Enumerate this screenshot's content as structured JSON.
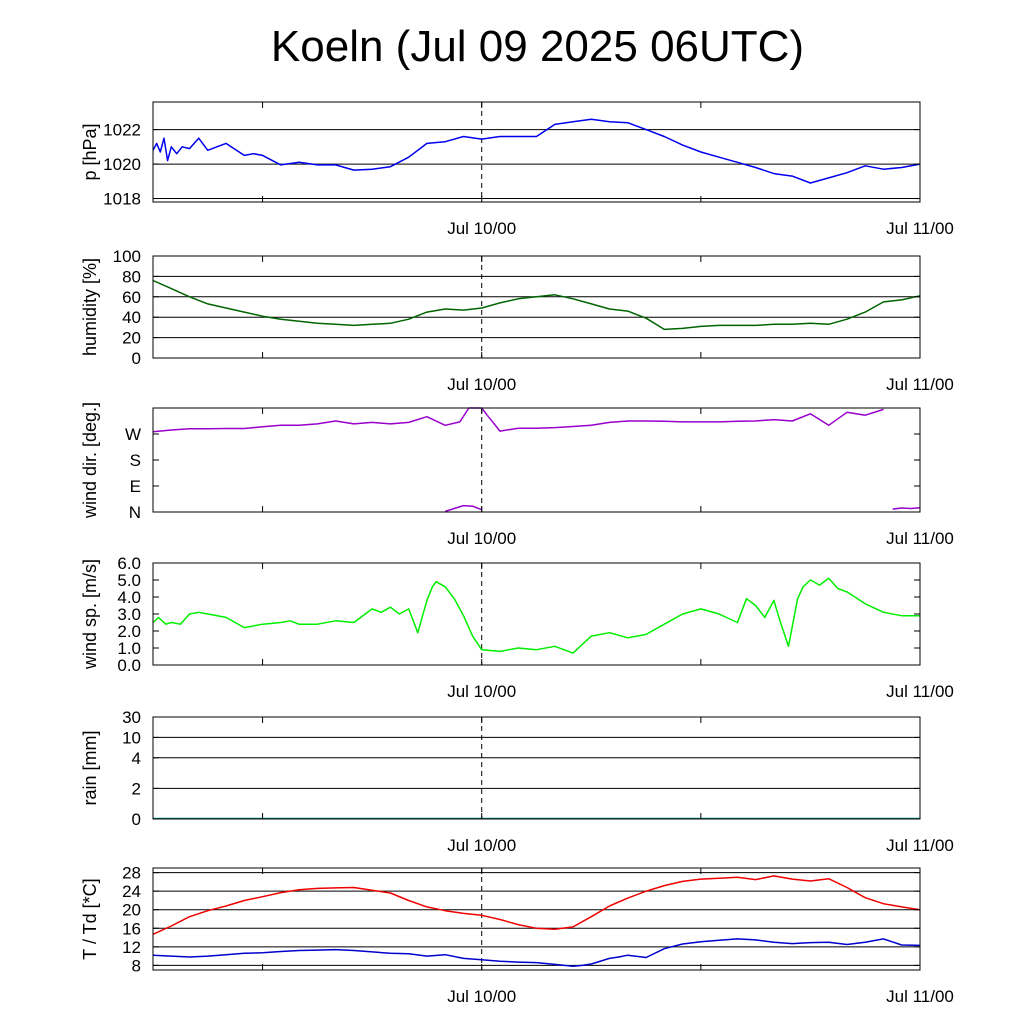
{
  "title": "Koeln (Jul 09 2025 06UTC)",
  "x_tick_labels": [
    "Jul 10/00",
    "Jul 11/00"
  ],
  "chart_data": [
    {
      "type": "line",
      "id": "pressure",
      "ylabel": "p [hPa]",
      "ylim": [
        1017.8,
        1023.6
      ],
      "yticks": [
        1018,
        1020,
        1022
      ],
      "ytick_labels": [
        "1018",
        "1020",
        "1022"
      ],
      "grid_y": [
        1018,
        1020,
        1022
      ],
      "x_range_hours": [
        6,
        48
      ],
      "series": [
        {
          "color": "#0000ee",
          "x": [
            6,
            6.2,
            6.4,
            6.6,
            6.8,
            7.0,
            7.3,
            7.6,
            8.0,
            8.5,
            9.0,
            9.5,
            10,
            11,
            11.5,
            12,
            13,
            14,
            15,
            16,
            17,
            18,
            19,
            20,
            21,
            22,
            23,
            24,
            25,
            26,
            27,
            28,
            29,
            30,
            31,
            32,
            33,
            34,
            35,
            36,
            37,
            38,
            39,
            40,
            41,
            42,
            43,
            44,
            45,
            46,
            47,
            48
          ],
          "y": [
            1020.8,
            1021.2,
            1020.7,
            1021.5,
            1020.2,
            1021.0,
            1020.6,
            1021.0,
            1020.9,
            1021.5,
            1020.8,
            1021.0,
            1021.2,
            1020.5,
            1020.6,
            1020.5,
            1019.95,
            1020.1,
            1019.95,
            1019.95,
            1019.65,
            1019.7,
            1019.85,
            1020.4,
            1021.2,
            1021.3,
            1021.6,
            1021.45,
            1021.6,
            1021.6,
            1021.6,
            1022.3,
            1022.45,
            1022.6,
            1022.45,
            1022.4,
            1022.0,
            1021.6,
            1021.1,
            1020.7,
            1020.4,
            1020.1,
            1019.8,
            1019.45,
            1019.3,
            1018.9,
            1019.2,
            1019.5,
            1019.9,
            1019.7,
            1019.8,
            1020.0
          ]
        }
      ]
    },
    {
      "type": "line",
      "id": "humidity",
      "ylabel": "humidity [%]",
      "ylim": [
        0,
        100
      ],
      "yticks": [
        0,
        20,
        40,
        60,
        80,
        100
      ],
      "ytick_labels": [
        "0",
        "20",
        "40",
        "60",
        "80",
        "100"
      ],
      "grid_y": [
        20,
        40,
        60,
        80
      ],
      "x_range_hours": [
        6,
        48
      ],
      "series": [
        {
          "color": "#006400",
          "x": [
            6,
            7,
            8,
            9,
            10,
            11,
            12,
            13,
            14,
            15,
            16,
            17,
            18,
            19,
            20,
            21,
            22,
            23,
            24,
            25,
            26,
            27,
            28,
            29,
            30,
            31,
            32,
            33,
            34,
            35,
            36,
            37,
            38,
            39,
            40,
            41,
            42,
            43,
            44,
            45,
            46,
            47,
            48
          ],
          "y": [
            76,
            68,
            60,
            53,
            49,
            45,
            41,
            38,
            36,
            34,
            33,
            32,
            33,
            34,
            38,
            45,
            48,
            47,
            49,
            54,
            58,
            60,
            62,
            58,
            53,
            48,
            46,
            39,
            28,
            29,
            31,
            32,
            32,
            32,
            33,
            33,
            34,
            33,
            38,
            45,
            55,
            57,
            61
          ]
        }
      ]
    },
    {
      "type": "line",
      "id": "wind_direction",
      "ylabel": "wind dir. [deg.]",
      "ylim": [
        0,
        360
      ],
      "yticks": [
        0,
        90,
        180,
        270
      ],
      "ytick_labels": [
        "N",
        "E",
        "S",
        "W"
      ],
      "grid_y": [],
      "x_range_hours": [
        6,
        48
      ],
      "series": [
        {
          "color": "#9900cc",
          "x": [
            6,
            7,
            8,
            9,
            10,
            11,
            12,
            13,
            14,
            15,
            16,
            17,
            18,
            19,
            20,
            21,
            22,
            22.8,
            23.3,
            24.0,
            24.3,
            25,
            26,
            27,
            28,
            29,
            30,
            31,
            32,
            33,
            34,
            35,
            36,
            37,
            38,
            39,
            40,
            41,
            42,
            43,
            44,
            45,
            46
          ],
          "y": [
            278,
            284,
            288,
            288,
            289,
            289,
            295,
            300,
            300,
            305,
            315,
            305,
            310,
            305,
            310,
            330,
            300,
            312,
            360,
            360,
            335,
            280,
            290,
            290,
            292,
            296,
            300,
            310,
            315,
            315,
            314,
            312,
            312,
            312,
            314,
            315,
            320,
            315,
            340,
            300,
            345,
            335,
            355
          ]
        },
        {
          "color": "#9900cc",
          "x": [
            22.0,
            22.5,
            23,
            23.5,
            24
          ],
          "y": [
            2,
            12,
            22,
            20,
            8
          ]
        },
        {
          "color": "#9900cc",
          "x": [
            46.5,
            47,
            47.5,
            48
          ],
          "y": [
            10,
            14,
            12,
            15
          ]
        }
      ]
    },
    {
      "type": "line",
      "id": "wind_speed",
      "ylabel": "wind sp. [m/s]",
      "ylim": [
        0,
        6
      ],
      "yticks": [
        0,
        1,
        2,
        3,
        4,
        5,
        6
      ],
      "ytick_labels": [
        "0.0",
        "1.0",
        "2.0",
        "3.0",
        "4.0",
        "5.0",
        "6.0"
      ],
      "grid_y": [],
      "x_range_hours": [
        6,
        48
      ],
      "series": [
        {
          "color": "#00ee00",
          "x": [
            6,
            6.3,
            6.7,
            7,
            7.5,
            8,
            8.5,
            9,
            10,
            11,
            12,
            13,
            13.5,
            14,
            15,
            16,
            17,
            18,
            18.5,
            19,
            19.5,
            20,
            20.5,
            21,
            21.3,
            21.5,
            22,
            22.5,
            23,
            23.5,
            24,
            25,
            26,
            27,
            28,
            29,
            30,
            31,
            32,
            33,
            34,
            35,
            36,
            37,
            38,
            38.5,
            39,
            39.5,
            40,
            40.3,
            40.8,
            41.3,
            41.6,
            42,
            42.5,
            43,
            43.5,
            44,
            45,
            46,
            47,
            48
          ],
          "y": [
            2.5,
            2.8,
            2.4,
            2.5,
            2.4,
            3.0,
            3.1,
            3.0,
            2.8,
            2.2,
            2.4,
            2.5,
            2.6,
            2.4,
            2.4,
            2.6,
            2.5,
            3.3,
            3.1,
            3.4,
            3.0,
            3.3,
            1.9,
            3.8,
            4.6,
            4.9,
            4.6,
            3.9,
            2.9,
            1.7,
            0.9,
            0.8,
            1.0,
            0.9,
            1.1,
            0.7,
            1.7,
            1.9,
            1.6,
            1.8,
            2.4,
            3.0,
            3.3,
            3.0,
            2.5,
            3.9,
            3.5,
            2.8,
            3.8,
            2.7,
            1.1,
            3.9,
            4.6,
            5.0,
            4.7,
            5.1,
            4.5,
            4.3,
            3.6,
            3.1,
            2.9,
            2.9
          ]
        }
      ]
    },
    {
      "type": "line",
      "id": "rain",
      "ylabel": "rain [mm]",
      "ylim": [
        0,
        31
      ],
      "yticks": [
        0,
        2,
        4,
        10,
        30
      ],
      "ytick_labels": [
        "0",
        "2",
        "4",
        "10",
        "30"
      ],
      "ytick_positions": [
        0,
        0.3,
        0.6,
        0.8,
        1.0
      ],
      "grid_y": [
        0.3,
        0.6,
        0.8,
        1.0
      ],
      "x_range_hours": [
        6,
        48
      ],
      "series": [
        {
          "color": "#008888",
          "x": [
            6,
            48
          ],
          "y": [
            0,
            0
          ]
        }
      ]
    },
    {
      "type": "line",
      "id": "temperature",
      "ylabel": "T / Td [*C]",
      "ylim": [
        7,
        29
      ],
      "yticks": [
        8,
        12,
        16,
        20,
        24,
        28
      ],
      "ytick_labels": [
        "8",
        "12",
        "16",
        "20",
        "24",
        "28"
      ],
      "grid_y": [
        8,
        12,
        16,
        20,
        24,
        28
      ],
      "x_range_hours": [
        6,
        48
      ],
      "series": [
        {
          "name": "",
          "color": "#ee0000",
          "x": [
            6,
            7,
            8,
            9,
            10,
            11,
            12,
            13,
            14,
            15,
            16,
            17,
            18,
            19,
            20,
            21,
            22,
            23,
            24,
            25,
            26,
            27,
            28,
            29,
            30,
            31,
            32,
            33,
            34,
            35,
            36,
            37,
            38,
            39,
            40,
            41,
            42,
            43,
            44,
            45,
            46,
            47,
            48
          ],
          "y": [
            14.7,
            16.5,
            18.5,
            19.8,
            20.8,
            22.0,
            22.8,
            23.7,
            24.3,
            24.6,
            24.7,
            24.8,
            24.2,
            23.6,
            22.0,
            20.6,
            19.8,
            19.2,
            18.8,
            17.9,
            16.8,
            16.0,
            15.8,
            16.3,
            18.5,
            20.8,
            22.5,
            24.0,
            25.2,
            26.1,
            26.6,
            26.8,
            27.0,
            26.5,
            27.3,
            26.6,
            26.2,
            26.7,
            24.8,
            22.6,
            21.3,
            20.6,
            20.0
          ]
        },
        {
          "name": "",
          "color": "#0000cc",
          "x": [
            6,
            7,
            8,
            9,
            10,
            11,
            12,
            13,
            14,
            15,
            16,
            17,
            18,
            19,
            20,
            21,
            22,
            23,
            24,
            25,
            26,
            27,
            28,
            29,
            29.5,
            30,
            31,
            31.5,
            32,
            33,
            34,
            35,
            36,
            37,
            38,
            39,
            40,
            41,
            42,
            43,
            44,
            45,
            46,
            47,
            48
          ],
          "y": [
            10.2,
            10.0,
            9.8,
            10.0,
            10.3,
            10.6,
            10.7,
            11.0,
            11.2,
            11.3,
            11.4,
            11.2,
            10.9,
            10.6,
            10.5,
            10.0,
            10.3,
            9.5,
            9.2,
            8.9,
            8.7,
            8.6,
            8.2,
            7.8,
            8.0,
            8.3,
            9.5,
            9.8,
            10.2,
            9.7,
            11.6,
            12.6,
            13.1,
            13.4,
            13.7,
            13.5,
            13.0,
            12.7,
            12.9,
            13.0,
            12.5,
            13.0,
            13.7,
            12.4,
            12.3
          ]
        }
      ]
    }
  ]
}
